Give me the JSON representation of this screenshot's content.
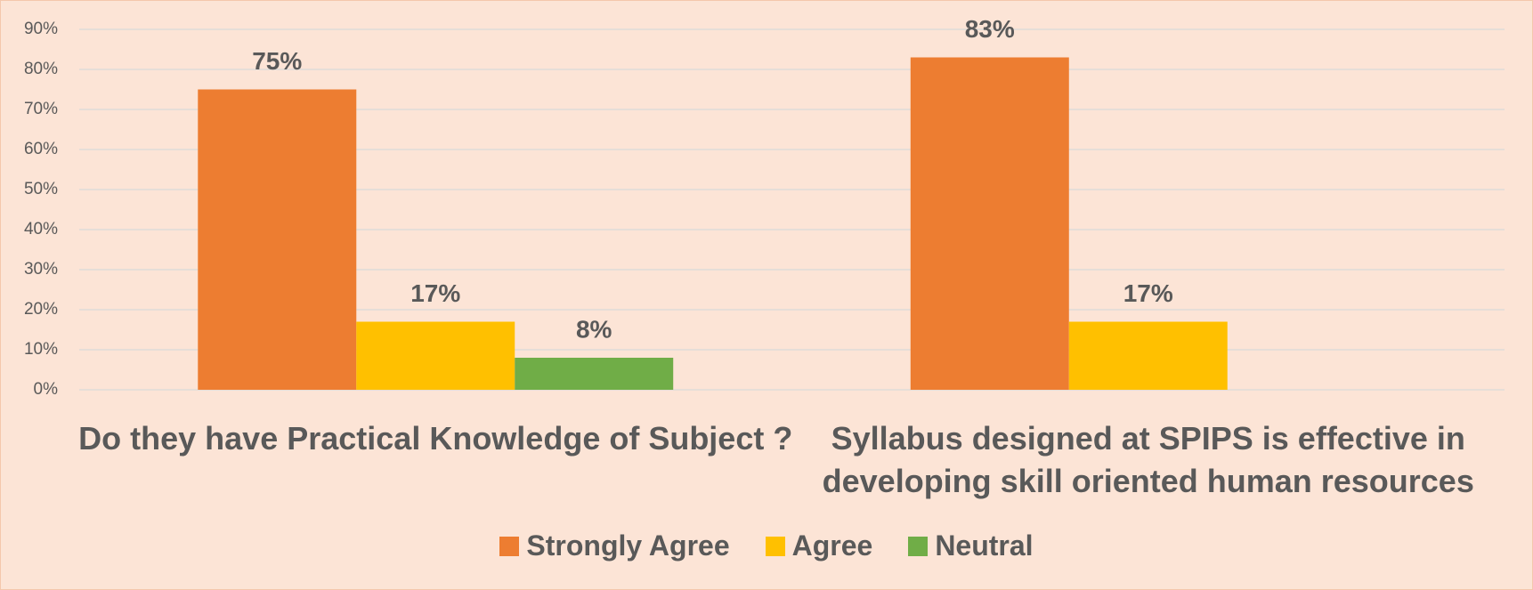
{
  "chart_data": {
    "type": "bar",
    "categories": [
      "Do they have Practical Knowledge of Subject ?",
      "Syllabus designed at SPIPS is effective in developing skill oriented human resources"
    ],
    "series": [
      {
        "name": "Strongly Agree",
        "color": "#ed7d31",
        "values": [
          75,
          83
        ],
        "value_labels": [
          "75%",
          "83%"
        ]
      },
      {
        "name": "Agree",
        "color": "#ffc000",
        "values": [
          17,
          17
        ],
        "value_labels": [
          "17%",
          "17%"
        ]
      },
      {
        "name": "Neutral",
        "color": "#70ad47",
        "values": [
          8,
          null
        ],
        "value_labels": [
          "8%",
          null
        ]
      }
    ],
    "ylim": [
      0,
      90
    ],
    "yticks": [
      {
        "value": 0,
        "label": "0%"
      },
      {
        "value": 10,
        "label": "10%"
      },
      {
        "value": 20,
        "label": "20%"
      },
      {
        "value": 30,
        "label": "30%"
      },
      {
        "value": 40,
        "label": "40%"
      },
      {
        "value": 50,
        "label": "50%"
      },
      {
        "value": 60,
        "label": "60%"
      },
      {
        "value": 70,
        "label": "70%"
      },
      {
        "value": 80,
        "label": "80%"
      },
      {
        "value": 90,
        "label": "90%"
      }
    ],
    "grid": true,
    "legend": "bottom"
  }
}
